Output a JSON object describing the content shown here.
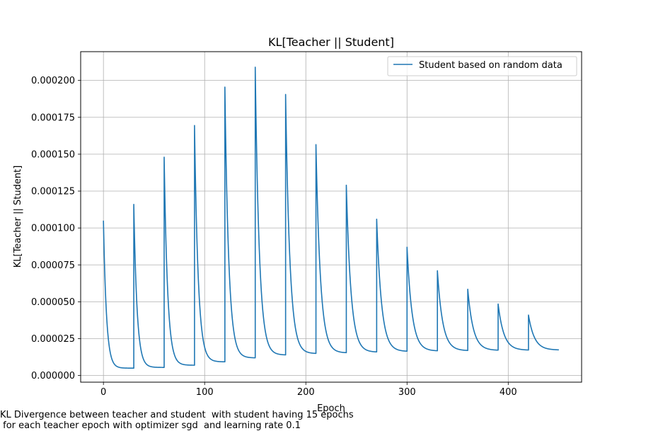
{
  "chart_data": {
    "type": "line",
    "title": "KL[Teacher || Student]",
    "xlabel": "Epoch",
    "ylabel": "KL[Teacher || Student]",
    "xlim": [
      -22.5,
      472.5
    ],
    "ylim": [
      -4.5e-06,
      0.0002195
    ],
    "x_ticks": [
      0,
      100,
      200,
      300,
      400
    ],
    "x_tick_labels": [
      "0",
      "100",
      "200",
      "300",
      "400"
    ],
    "y_ticks": [
      0,
      2.5e-05,
      5e-05,
      7.5e-05,
      0.0001,
      0.000125,
      0.00015,
      0.000175,
      0.0002
    ],
    "y_tick_labels": [
      "0.000000",
      "0.000025",
      "0.000050",
      "0.000075",
      "0.000100",
      "0.000125",
      "0.000150",
      "0.000175",
      "0.000200"
    ],
    "grid": true,
    "legend_position": "upper right",
    "series": [
      {
        "name": "Student based on random data",
        "color": "#1f77b4",
        "segment_length": 30,
        "segments": [
          {
            "start": 0,
            "peak": 0.000105,
            "end": 5e-06
          },
          {
            "start": 30,
            "peak": 0.000116,
            "end": 5.5e-06
          },
          {
            "start": 60,
            "peak": 0.000148,
            "end": 7e-06
          },
          {
            "start": 90,
            "peak": 0.0001695,
            "end": 9.3e-06
          },
          {
            "start": 120,
            "peak": 0.0001955,
            "end": 1.2e-05
          },
          {
            "start": 150,
            "peak": 0.000209,
            "end": 1.4e-05
          },
          {
            "start": 180,
            "peak": 0.0001905,
            "end": 1.5e-05
          },
          {
            "start": 210,
            "peak": 0.0001565,
            "end": 1.55e-05
          },
          {
            "start": 240,
            "peak": 0.000129,
            "end": 1.6e-05
          },
          {
            "start": 270,
            "peak": 0.000106,
            "end": 1.65e-05
          },
          {
            "start": 300,
            "peak": 8.7e-05,
            "end": 1.68e-05
          },
          {
            "start": 330,
            "peak": 7.1e-05,
            "end": 1.7e-05
          },
          {
            "start": 360,
            "peak": 5.85e-05,
            "end": 1.72e-05
          },
          {
            "start": 390,
            "peak": 4.85e-05,
            "end": 1.73e-05
          },
          {
            "start": 420,
            "peak": 4.1e-05,
            "end": 1.74e-05
          }
        ]
      }
    ]
  },
  "caption": {
    "line1": "KL Divergence between teacher and student  with student having 15 epochs",
    "line2": " for each teacher epoch with optimizer sgd  and learning rate 0.1"
  }
}
